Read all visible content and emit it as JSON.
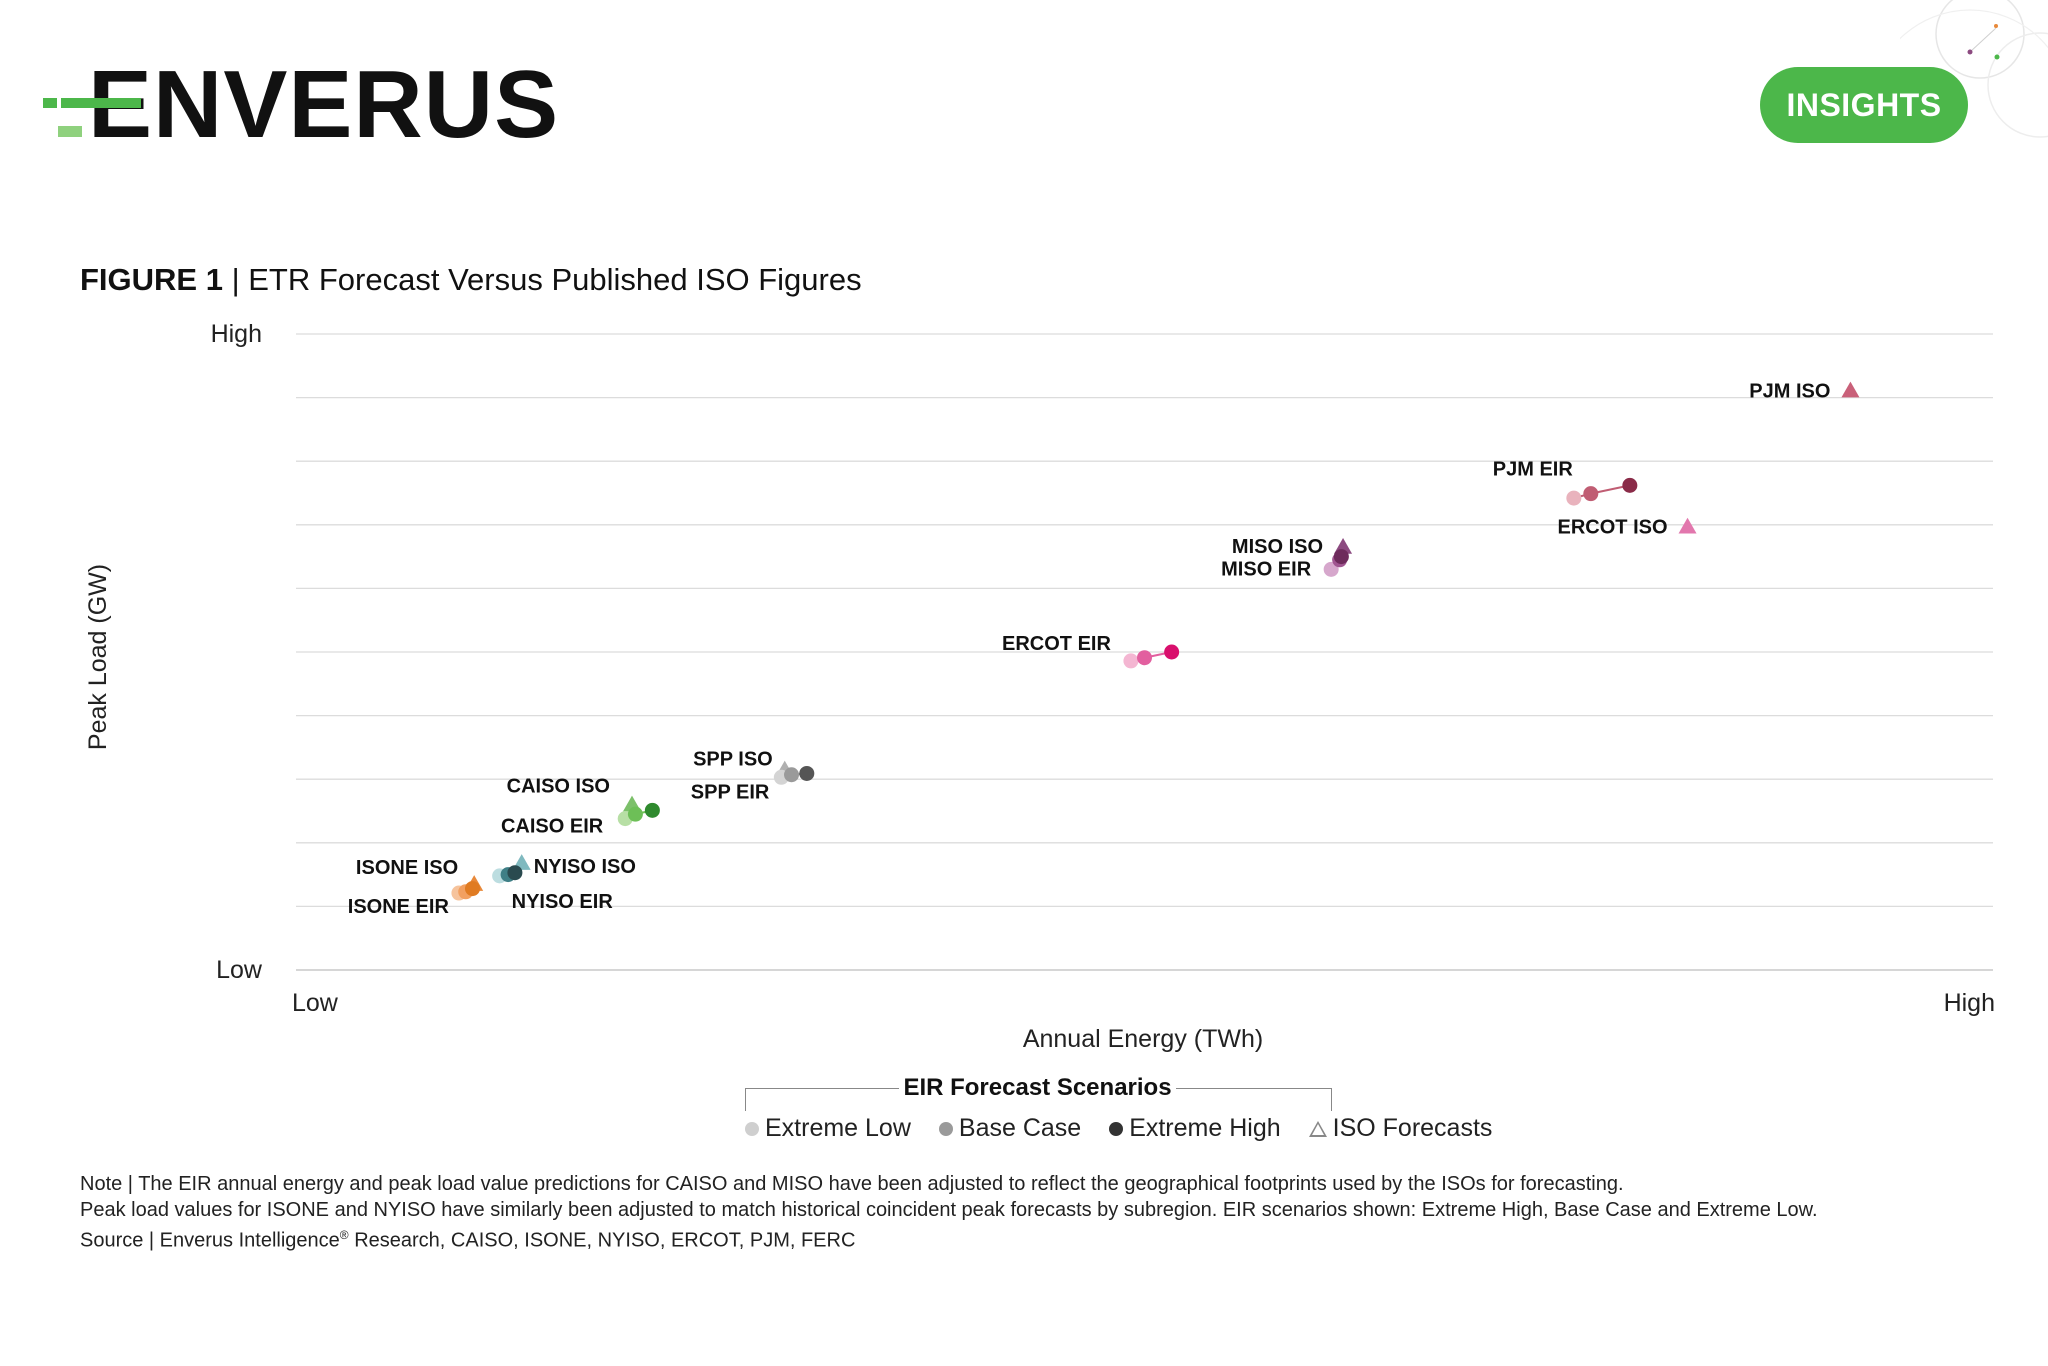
{
  "brand": {
    "logo_text": "ENVERUS",
    "badge": "INSIGHTS",
    "accent": "#4cb74a"
  },
  "figure": {
    "label": "FIGURE 1",
    "separator": " | ",
    "title": "ETR Forecast Versus Published ISO Figures"
  },
  "chart_data": {
    "type": "scatter",
    "title": "ETR Forecast Versus Published ISO Figures",
    "xlabel": "Annual Energy (TWh)",
    "ylabel": "Peak Load (GW)",
    "x_tick_labels": [
      "Low",
      "High"
    ],
    "y_tick_labels": [
      "High",
      "Low"
    ],
    "xlim": [
      0,
      100
    ],
    "ylim": [
      0,
      100
    ],
    "grid": true,
    "y_gridlines": 10,
    "groups": [
      {
        "name": "ISONE",
        "color_low": "#f6c39c",
        "color_base": "#f2a061",
        "color_high": "#e07b22",
        "iso_color": "#e8893a",
        "eir": {
          "low": [
            9.6,
            12.1
          ],
          "base": [
            10.0,
            12.3
          ],
          "high": [
            10.4,
            12.8
          ]
        },
        "iso": [
          10.5,
          13.5
        ],
        "labels": {
          "iso": "ISONE ISO",
          "eir": "ISONE EIR"
        }
      },
      {
        "name": "NYISO",
        "color_low": "#bcdde0",
        "color_base": "#3f7f86",
        "color_high": "#2a4a4f",
        "iso_color": "#7fb9bf",
        "eir": {
          "low": [
            12.0,
            14.8
          ],
          "base": [
            12.5,
            15.0
          ],
          "high": [
            12.9,
            15.3
          ]
        },
        "iso": [
          13.3,
          16.8
        ],
        "labels": {
          "iso": "NYISO ISO",
          "eir": "NYISO EIR"
        }
      },
      {
        "name": "CAISO",
        "color_low": "#b7dfa5",
        "color_base": "#6dbf57",
        "color_high": "#2f8a2e",
        "iso_color": "#7cc06a",
        "eir": {
          "low": [
            19.4,
            23.8
          ],
          "base": [
            20.0,
            24.5
          ],
          "high": [
            21.0,
            25.1
          ]
        },
        "iso": [
          19.8,
          26.0
        ],
        "labels": {
          "iso": "CAISO ISO",
          "eir": "CAISO EIR"
        }
      },
      {
        "name": "SPP",
        "color_low": "#d4d4d4",
        "color_base": "#9a9a9a",
        "color_high": "#555555",
        "iso_color": "#b0b0b0",
        "eir": {
          "low": [
            28.6,
            30.3
          ],
          "base": [
            29.2,
            30.7
          ],
          "high": [
            30.1,
            30.9
          ]
        },
        "iso": [
          28.8,
          31.5
        ],
        "labels": {
          "iso": "SPP ISO",
          "eir": "SPP EIR"
        }
      },
      {
        "name": "ERCOT",
        "color_low": "#f4b6d2",
        "color_base": "#e25f9f",
        "color_high": "#d90f6d",
        "iso_color": "#e277ad",
        "eir": {
          "low": [
            49.2,
            48.6
          ],
          "base": [
            50.0,
            49.1
          ],
          "high": [
            51.6,
            50.0
          ]
        },
        "iso": [
          82.0,
          69.7
        ],
        "labels": {
          "iso": "ERCOT ISO",
          "eir": "ERCOT EIR"
        }
      },
      {
        "name": "MISO",
        "color_low": "#d6a7cc",
        "color_base": "#a05590",
        "color_high": "#6e2b5c",
        "iso_color": "#8c4a80",
        "eir": {
          "low": [
            61.0,
            63.0
          ],
          "base": [
            61.5,
            64.5
          ],
          "high": [
            61.6,
            65.0
          ]
        },
        "iso": [
          61.7,
          66.5
        ],
        "labels": {
          "iso": "MISO ISO",
          "eir": "MISO EIR"
        }
      },
      {
        "name": "PJM",
        "color_low": "#e9b3bd",
        "color_base": "#c05d73",
        "color_high": "#8a2b48",
        "iso_color": "#c96079",
        "eir": {
          "low": [
            75.3,
            74.2
          ],
          "base": [
            76.3,
            74.9
          ],
          "high": [
            78.6,
            76.2
          ]
        },
        "iso": [
          91.6,
          91.1
        ],
        "labels": {
          "iso": "PJM ISO",
          "eir": "PJM EIR"
        }
      }
    ],
    "legend": {
      "title": "EIR Forecast Scenarios",
      "placement": "bottom-center",
      "items": [
        {
          "label": "Extreme Low",
          "color": "#cfcfcf"
        },
        {
          "label": "Base Case",
          "color": "#9a9a9a"
        },
        {
          "label": "Extreme High",
          "color": "#333333"
        },
        {
          "label": "ISO Forecasts",
          "color": "#888888"
        }
      ]
    }
  },
  "notes": {
    "line1": "Note | The EIR annual energy and peak load value predictions for CAISO and MISO have been adjusted to reflect the geographical footprints used by the ISOs for forecasting.",
    "line2": "Peak load values for ISONE and NYISO have similarly been adjusted to match historical coincident peak forecasts by subregion. EIR scenarios shown: Extreme High, Base Case and Extreme Low.",
    "line3_prefix": "Source | Enverus Intelligence",
    "line3_reg": "®",
    "line3_suffix": " Research, CAISO, ISONE, NYISO, ERCOT, PJM, FERC"
  }
}
